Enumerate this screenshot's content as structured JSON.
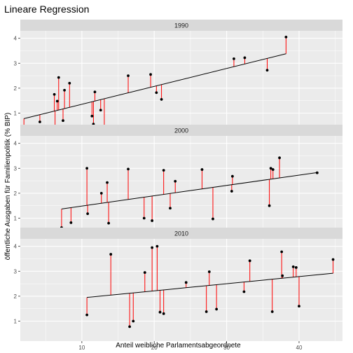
{
  "chart_data": {
    "type": "scatter",
    "title": "Lineare Regression",
    "xlabel": "Anteil weibliche Parlamentsabgeordnete",
    "ylabel": "öffentliche Ausgaben für Familienpolitik (% BIP)",
    "xlim": [
      1.5,
      46
    ],
    "ylim": [
      0.2,
      4.3
    ],
    "xticks": [
      10,
      20,
      30,
      40
    ],
    "yticks": [
      1,
      2,
      3,
      4
    ],
    "grid": true,
    "legend": "none",
    "colors": {
      "panel_bg": "#EBEBEB",
      "grid": "#FFFFFF",
      "strip_bg": "#D9D9D9",
      "point": "#000000",
      "fit_line": "#000000",
      "residual": "#FF0000"
    },
    "panels": [
      {
        "label": "1990",
        "fit": {
          "x0": 2.0,
          "y0": 0.78,
          "x1": 38.2,
          "y1": 3.38
        },
        "points": [
          [
            2.0,
            0.32
          ],
          [
            4.2,
            0.65
          ],
          [
            6.2,
            1.75
          ],
          [
            6.3,
            0.42
          ],
          [
            6.6,
            1.48
          ],
          [
            6.8,
            2.43
          ],
          [
            7.4,
            0.7
          ],
          [
            7.6,
            1.92
          ],
          [
            8.3,
            2.2
          ],
          [
            11.4,
            0.88
          ],
          [
            11.6,
            0.56
          ],
          [
            11.8,
            1.85
          ],
          [
            12.6,
            1.12
          ],
          [
            13.1,
            0.33
          ],
          [
            16.4,
            2.5
          ],
          [
            19.5,
            2.55
          ],
          [
            20.3,
            1.82
          ],
          [
            21.0,
            1.55
          ],
          [
            31.0,
            3.18
          ],
          [
            32.5,
            3.22
          ],
          [
            35.6,
            2.72
          ],
          [
            38.2,
            4.05
          ]
        ]
      },
      {
        "label": "2000",
        "fit": {
          "x0": 7.2,
          "y0": 1.37,
          "x1": 42.5,
          "y1": 2.83
        },
        "points": [
          [
            7.2,
            0.62
          ],
          [
            8.5,
            0.82
          ],
          [
            10.7,
            3.0
          ],
          [
            10.8,
            1.18
          ],
          [
            12.7,
            2.0
          ],
          [
            13.5,
            2.43
          ],
          [
            13.7,
            0.8
          ],
          [
            16.4,
            2.97
          ],
          [
            18.6,
            1.0
          ],
          [
            19.7,
            0.9
          ],
          [
            21.3,
            2.92
          ],
          [
            22.2,
            1.4
          ],
          [
            22.9,
            2.48
          ],
          [
            26.6,
            2.95
          ],
          [
            28.1,
            0.97
          ],
          [
            30.7,
            2.08
          ],
          [
            30.8,
            2.68
          ],
          [
            35.9,
            1.5
          ],
          [
            36.1,
            3.0
          ],
          [
            36.4,
            2.95
          ],
          [
            37.3,
            3.42
          ],
          [
            42.5,
            2.82
          ]
        ]
      },
      {
        "label": "2010",
        "fit": {
          "x0": 10.7,
          "y0": 1.95,
          "x1": 44.7,
          "y1": 2.92
        },
        "points": [
          [
            10.7,
            1.25
          ],
          [
            14.0,
            3.68
          ],
          [
            16.6,
            0.78
          ],
          [
            17.1,
            1.0
          ],
          [
            18.7,
            2.95
          ],
          [
            19.7,
            3.95
          ],
          [
            20.4,
            4.0
          ],
          [
            20.8,
            1.36
          ],
          [
            21.3,
            1.3
          ],
          [
            24.4,
            2.55
          ],
          [
            27.2,
            1.38
          ],
          [
            27.6,
            2.98
          ],
          [
            28.6,
            1.48
          ],
          [
            32.4,
            2.18
          ],
          [
            33.2,
            3.42
          ],
          [
            36.3,
            1.38
          ],
          [
            37.6,
            3.78
          ],
          [
            37.7,
            2.82
          ],
          [
            39.2,
            3.18
          ],
          [
            39.6,
            3.15
          ],
          [
            40.0,
            1.6
          ],
          [
            44.7,
            3.47
          ]
        ]
      }
    ]
  }
}
